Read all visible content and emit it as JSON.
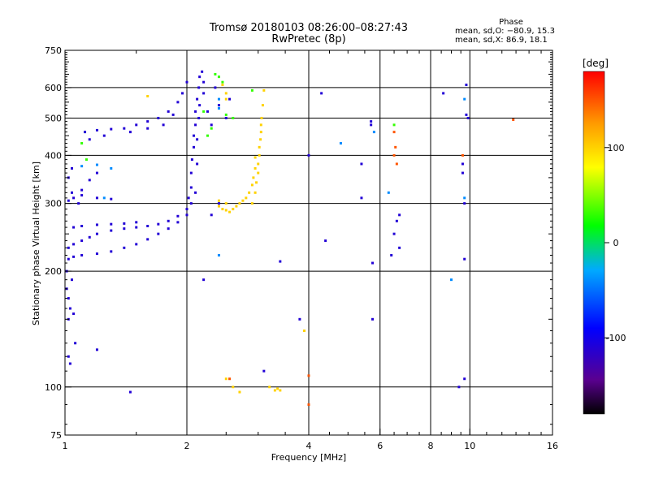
{
  "chart_data": {
    "type": "scatter",
    "title": "Tromsø 20180103 08:26:00–08:27:43",
    "subtitle": "RwPretec (8p)",
    "xlabel": "Frequency [MHz]",
    "ylabel": "Stationary phase Virtual Height [km]",
    "xscale": "log2",
    "yscale": "log",
    "xlim": [
      1,
      16
    ],
    "ylim": [
      75,
      750
    ],
    "xticks": [
      {
        "v": 1,
        "label": "1"
      },
      {
        "v": 2,
        "label": "2"
      },
      {
        "v": 4,
        "label": "4"
      },
      {
        "v": 6,
        "label": "6"
      },
      {
        "v": 8,
        "label": "8"
      },
      {
        "v": 10,
        "label": "10"
      },
      {
        "v": 16,
        "label": "16"
      }
    ],
    "yticks": [
      {
        "v": 75,
        "label": "75"
      },
      {
        "v": 100,
        "label": "100"
      },
      {
        "v": 200,
        "label": "200"
      },
      {
        "v": 300,
        "label": "300"
      },
      {
        "v": 400,
        "label": "400"
      },
      {
        "v": 500,
        "label": "500"
      },
      {
        "v": 600,
        "label": "600"
      },
      {
        "v": 750,
        "label": "750"
      }
    ],
    "grid_x": [
      1,
      2,
      4,
      6,
      8,
      10,
      16
    ],
    "grid_y": [
      100,
      200,
      300,
      400,
      500,
      600
    ],
    "grid": true,
    "minor_x": [
      1.5,
      2.5,
      3,
      3.5,
      4.5,
      5,
      5.5,
      6.5,
      7,
      7.5,
      8.5,
      9,
      9.5,
      11,
      12,
      13,
      14,
      15
    ],
    "phase_stats": {
      "heading": "Phase",
      "line1": "mean, sd,O: −80.9, 15.3",
      "line2": "mean, sd,X:  86.9, 18.1"
    },
    "colorbar": {
      "label": "[deg]",
      "min": -180,
      "max": 180,
      "ticks": [
        {
          "v": 100,
          "label": "100"
        },
        {
          "v": 0,
          "label": "0"
        },
        {
          "v": -100,
          "label": "-100"
        }
      ]
    },
    "series": [
      {
        "phase": -110,
        "points": [
          [
            1.02,
            230
          ],
          [
            1.05,
            235
          ],
          [
            1.1,
            240
          ],
          [
            1.15,
            245
          ],
          [
            1.2,
            250
          ],
          [
            1.3,
            255
          ],
          [
            1.4,
            258
          ],
          [
            1.5,
            260
          ],
          [
            1.6,
            262
          ],
          [
            1.7,
            265
          ],
          [
            1.8,
            270
          ],
          [
            1.9,
            278
          ],
          [
            2.0,
            290
          ],
          [
            2.05,
            300
          ],
          [
            1.02,
            215
          ],
          [
            1.05,
            218
          ],
          [
            1.1,
            220
          ],
          [
            1.2,
            222
          ],
          [
            1.3,
            225
          ],
          [
            1.4,
            230
          ],
          [
            1.5,
            235
          ],
          [
            1.6,
            242
          ],
          [
            1.7,
            250
          ],
          [
            1.8,
            258
          ],
          [
            1.9,
            268
          ],
          [
            2.0,
            280
          ],
          [
            1.05,
            260
          ],
          [
            1.1,
            262
          ],
          [
            1.2,
            264
          ],
          [
            1.3,
            265
          ],
          [
            1.4,
            266
          ],
          [
            1.5,
            268
          ],
          [
            1.12,
            460
          ],
          [
            1.2,
            465
          ],
          [
            1.3,
            468
          ],
          [
            1.4,
            470
          ],
          [
            1.5,
            480
          ],
          [
            1.6,
            490
          ],
          [
            1.7,
            500
          ],
          [
            1.8,
            520
          ],
          [
            1.9,
            550
          ],
          [
            1.95,
            580
          ],
          [
            2.0,
            620
          ],
          [
            1.15,
            440
          ],
          [
            1.25,
            450
          ],
          [
            1.45,
            460
          ],
          [
            1.6,
            470
          ],
          [
            1.75,
            480
          ],
          [
            1.85,
            510
          ],
          [
            2.02,
            310
          ],
          [
            2.05,
            330
          ],
          [
            2.05,
            360
          ],
          [
            2.06,
            390
          ],
          [
            2.08,
            420
          ],
          [
            2.08,
            450
          ],
          [
            2.1,
            480
          ],
          [
            2.1,
            520
          ],
          [
            2.12,
            560
          ],
          [
            2.14,
            600
          ],
          [
            2.15,
            640
          ],
          [
            2.18,
            660
          ],
          [
            2.1,
            320
          ],
          [
            2.12,
            380
          ],
          [
            2.12,
            440
          ],
          [
            2.14,
            500
          ],
          [
            2.15,
            540
          ],
          [
            2.2,
            620
          ],
          [
            2.2,
            580
          ],
          [
            2.25,
            520
          ],
          [
            2.3,
            480
          ],
          [
            2.35,
            600
          ],
          [
            2.4,
            540
          ],
          [
            2.5,
            500
          ],
          [
            2.55,
            560
          ],
          [
            1.02,
            305
          ],
          [
            1.04,
            320
          ],
          [
            1.05,
            310
          ],
          [
            1.08,
            300
          ],
          [
            1.1,
            315
          ],
          [
            1.2,
            310
          ],
          [
            1.3,
            308
          ],
          [
            1.02,
            350
          ],
          [
            1.04,
            370
          ],
          [
            1.1,
            325
          ],
          [
            1.15,
            345
          ],
          [
            1.2,
            360
          ],
          [
            1.01,
            180
          ],
          [
            1.02,
            170
          ],
          [
            1.03,
            160
          ],
          [
            1.02,
            150
          ],
          [
            1.05,
            155
          ],
          [
            1.04,
            190
          ],
          [
            1.01,
            200
          ],
          [
            1.02,
            120
          ],
          [
            1.03,
            115
          ],
          [
            1.06,
            130
          ],
          [
            1.2,
            125
          ],
          [
            1.45,
            97
          ],
          [
            4.0,
            400
          ],
          [
            4.3,
            580
          ],
          [
            4.4,
            240
          ],
          [
            5.4,
            310
          ],
          [
            5.4,
            380
          ],
          [
            5.7,
            490
          ],
          [
            5.7,
            480
          ],
          [
            5.75,
            210
          ],
          [
            5.75,
            150
          ],
          [
            6.4,
            220
          ],
          [
            6.5,
            250
          ],
          [
            6.6,
            270
          ],
          [
            6.7,
            280
          ],
          [
            6.7,
            230
          ],
          [
            8.6,
            580
          ],
          [
            9.6,
            380
          ],
          [
            9.6,
            360
          ],
          [
            9.7,
            300
          ],
          [
            9.7,
            215
          ],
          [
            9.4,
            100
          ],
          [
            9.7,
            105
          ],
          [
            9.8,
            610
          ],
          [
            9.8,
            510
          ],
          [
            9.9,
            500
          ],
          [
            3.8,
            150
          ],
          [
            3.1,
            110
          ],
          [
            2.2,
            190
          ],
          [
            2.3,
            280
          ],
          [
            2.4,
            300
          ],
          [
            3.4,
            212
          ]
        ]
      },
      {
        "phase": 100,
        "points": [
          [
            2.9,
            300
          ],
          [
            2.95,
            320
          ],
          [
            2.97,
            340
          ],
          [
            3.0,
            360
          ],
          [
            3.0,
            380
          ],
          [
            3.02,
            400
          ],
          [
            3.02,
            420
          ],
          [
            3.04,
            440
          ],
          [
            3.05,
            460
          ],
          [
            3.05,
            480
          ],
          [
            3.06,
            500
          ],
          [
            3.08,
            540
          ],
          [
            3.1,
            590
          ],
          [
            2.7,
            300
          ],
          [
            2.75,
            305
          ],
          [
            2.8,
            310
          ],
          [
            2.85,
            320
          ],
          [
            2.9,
            335
          ],
          [
            2.92,
            350
          ],
          [
            2.95,
            370
          ],
          [
            2.95,
            395
          ],
          [
            2.4,
            295
          ],
          [
            2.45,
            290
          ],
          [
            2.5,
            288
          ],
          [
            2.55,
            285
          ],
          [
            2.6,
            290
          ],
          [
            2.65,
            295
          ],
          [
            2.4,
            305
          ],
          [
            2.5,
            300
          ],
          [
            2.45,
            610
          ],
          [
            2.5,
            580
          ],
          [
            2.5,
            560
          ],
          [
            3.3,
            98
          ],
          [
            3.35,
            99
          ],
          [
            3.4,
            98
          ],
          [
            3.2,
            100
          ],
          [
            2.7,
            97
          ],
          [
            3.9,
            140
          ],
          [
            2.6,
            100
          ],
          [
            2.5,
            105
          ],
          [
            1.6,
            570
          ]
        ]
      },
      {
        "phase": 30,
        "points": [
          [
            2.2,
            520
          ],
          [
            2.25,
            450
          ],
          [
            2.3,
            470
          ],
          [
            2.35,
            650
          ],
          [
            2.4,
            640
          ],
          [
            2.45,
            620
          ],
          [
            2.5,
            510
          ],
          [
            2.6,
            500
          ],
          [
            1.13,
            390
          ],
          [
            1.1,
            430
          ],
          [
            2.9,
            590
          ],
          [
            6.5,
            480
          ]
        ]
      },
      {
        "phase": 150,
        "points": [
          [
            6.5,
            400
          ],
          [
            6.55,
            420
          ],
          [
            6.6,
            380
          ],
          [
            9.6,
            400
          ],
          [
            6.5,
            460
          ],
          [
            2.55,
            105
          ],
          [
            4.0,
            107
          ],
          [
            4.0,
            90
          ],
          [
            12.8,
            495
          ]
        ]
      },
      {
        "phase": -40,
        "points": [
          [
            1.1,
            375
          ],
          [
            1.2,
            378
          ],
          [
            1.3,
            370
          ],
          [
            1.25,
            310
          ],
          [
            2.4,
            530
          ],
          [
            2.4,
            560
          ],
          [
            5.8,
            460
          ],
          [
            4.8,
            430
          ],
          [
            9.7,
            310
          ],
          [
            9.7,
            560
          ],
          [
            9.0,
            190
          ],
          [
            2.4,
            220
          ],
          [
            6.3,
            320
          ]
        ]
      }
    ]
  }
}
